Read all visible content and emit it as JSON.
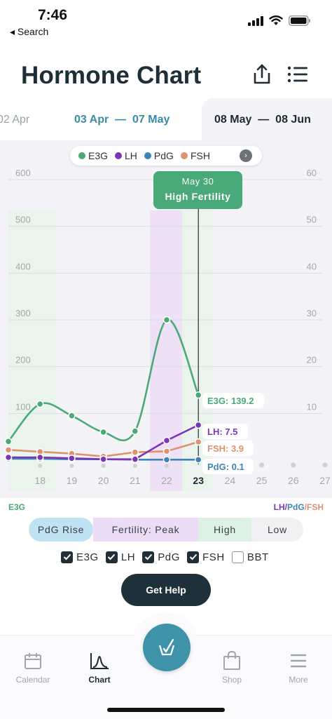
{
  "status_bar": {
    "time": "7:46",
    "back_label": "◂ Search"
  },
  "header": {
    "title": "Hormone Chart"
  },
  "date_ranges": {
    "previous": "02 Apr",
    "current_start": "03 Apr",
    "current_end": "07 May",
    "next_start": "08 May",
    "next_end": "08 Jun"
  },
  "legend": [
    {
      "name": "E3G",
      "color": "#4aa978"
    },
    {
      "name": "LH",
      "color": "#7b35b8"
    },
    {
      "name": "PdG",
      "color": "#3c86b7"
    },
    {
      "name": "FSH",
      "color": "#dd9270"
    }
  ],
  "tooltip": {
    "date": "May 30",
    "status": "High Fertility"
  },
  "chart_data": {
    "type": "line",
    "x": [
      17,
      18,
      19,
      20,
      21,
      22,
      23
    ],
    "x_ticks": [
      "18",
      "19",
      "20",
      "21",
      "22",
      "23",
      "24",
      "25",
      "26",
      "27"
    ],
    "selected_x": "23",
    "left_axis": {
      "label": "E3G",
      "ticks": [
        "100",
        "200",
        "300",
        "400",
        "500",
        "600"
      ],
      "ylim": [
        0,
        600
      ]
    },
    "right_axis": {
      "label": "LH/PdG/FSH",
      "ticks": [
        "10",
        "20",
        "30",
        "40",
        "50",
        "60"
      ],
      "ylim": [
        0,
        60
      ]
    },
    "series": [
      {
        "name": "E3G",
        "axis": "left",
        "color": "#4aa978",
        "values": [
          40,
          120,
          95,
          60,
          62,
          300,
          139.2
        ]
      },
      {
        "name": "LH",
        "axis": "right",
        "color": "#7b35b8",
        "values": [
          0.6,
          0.6,
          0.4,
          0.2,
          0.2,
          4.2,
          7.5
        ]
      },
      {
        "name": "PdG",
        "axis": "right",
        "color": "#3c86b7",
        "values": [
          0.3,
          0.3,
          0.2,
          0.2,
          0.1,
          0.1,
          0.1
        ]
      },
      {
        "name": "FSH",
        "axis": "right",
        "color": "#dd9270",
        "values": [
          2.2,
          1.8,
          1.4,
          0.8,
          1.7,
          1.9,
          3.9
        ]
      }
    ],
    "value_labels": [
      {
        "text": "E3G: 139.2",
        "color": "#4aa978"
      },
      {
        "text": "LH: 7.5",
        "color": "#7b35b8"
      },
      {
        "text": "FSH: 3.9",
        "color": "#dd9270"
      },
      {
        "text": "PdG: 0.1",
        "color": "#3c86b7"
      }
    ],
    "grid": true
  },
  "phases": [
    "PdG Rise",
    "Fertility: Peak",
    "High",
    "Low"
  ],
  "checkboxes": [
    {
      "label": "E3G",
      "checked": true
    },
    {
      "label": "LH",
      "checked": true
    },
    {
      "label": "PdG",
      "checked": true
    },
    {
      "label": "FSH",
      "checked": true
    },
    {
      "label": "BBT",
      "checked": false
    }
  ],
  "help_button": "Get Help",
  "tabs": [
    {
      "label": "Calendar",
      "icon": "calendar-icon"
    },
    {
      "label": "Chart",
      "icon": "chart-icon"
    },
    {
      "label": "Shop",
      "icon": "bag-icon"
    },
    {
      "label": "More",
      "icon": "menu-icon"
    }
  ],
  "axis_name_labels": {
    "left": "E3G",
    "lh": "LH",
    "pdg": "PdG",
    "fsh": "FSH"
  }
}
